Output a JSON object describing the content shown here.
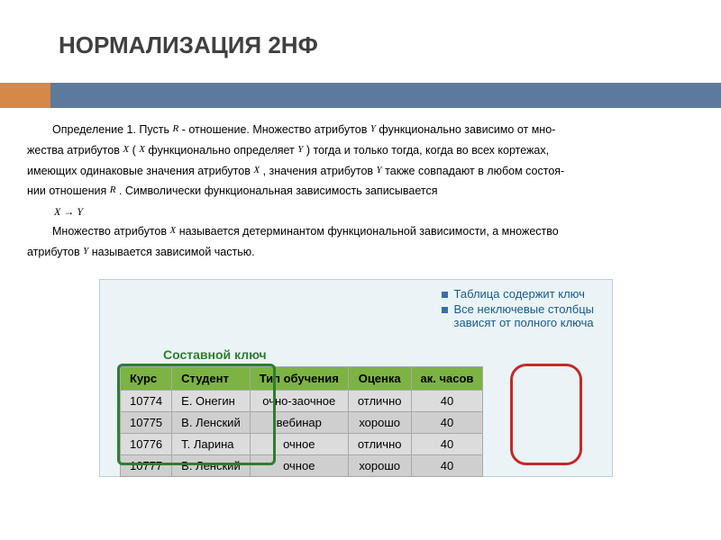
{
  "title": "НОРМАЛИЗАЦИЯ 2НФ",
  "accent": {
    "orange": "#d68848",
    "blue": "#5c7a9c"
  },
  "definition": {
    "p1_a": "Определение 1. Пусть ",
    "var_R": "R",
    "p1_b": " - отношение. Множество атрибутов ",
    "var_Y": "Y",
    "p1_c": " функционально зависимо от мно-",
    "p2_a": "жества атрибутов ",
    "var_X": "X",
    "p2_b": " ( ",
    "p2_c": " функционально определяет ",
    "p2_d": " ) тогда и только тогда, когда во всех кортежах,",
    "p3_a": "имеющих одинаковые значения атрибутов ",
    "p3_b": " , значения атрибутов ",
    "p3_c": " также совпадают в любом состоя-",
    "p4_a": "нии отношения ",
    "p4_b": " . Символически функциональная зависимость записывается",
    "formula": "X → Y",
    "p5_a": "Множество атрибутов ",
    "p5_b": " называется детерминантом функциональной зависимости, а множество",
    "p6_a": "атрибутов ",
    "p6_b": " называется зависимой частью."
  },
  "figure": {
    "background": "#eaf3f5",
    "bullet1": "Таблица содержит ключ",
    "bullet2_l1": "Все неключевые столбцы",
    "bullet2_l2": "зависят от полного ключа",
    "compound_key": "Составной ключ",
    "green_box_color": "#2e7d32",
    "red_box_color": "#c62828",
    "table": {
      "header_bg": "#7cb342",
      "row_bg": "#dcdcdc",
      "row_alt_bg": "#cfcfcf",
      "columns": [
        "Курс",
        "Студент",
        "Тип обучения",
        "Оценка",
        "ак. часов"
      ],
      "rows": [
        [
          "10774",
          "Е. Онегин",
          "очно-заочное",
          "отлично",
          "40"
        ],
        [
          "10775",
          "В. Ленский",
          "вебинар",
          "хорошо",
          "40"
        ],
        [
          "10776",
          "Т. Ларина",
          "очное",
          "отлично",
          "40"
        ],
        [
          "10777",
          "В. Ленский",
          "очное",
          "хорошо",
          "40"
        ]
      ],
      "col_align": [
        "left",
        "left",
        "center",
        "center",
        "center"
      ]
    }
  }
}
